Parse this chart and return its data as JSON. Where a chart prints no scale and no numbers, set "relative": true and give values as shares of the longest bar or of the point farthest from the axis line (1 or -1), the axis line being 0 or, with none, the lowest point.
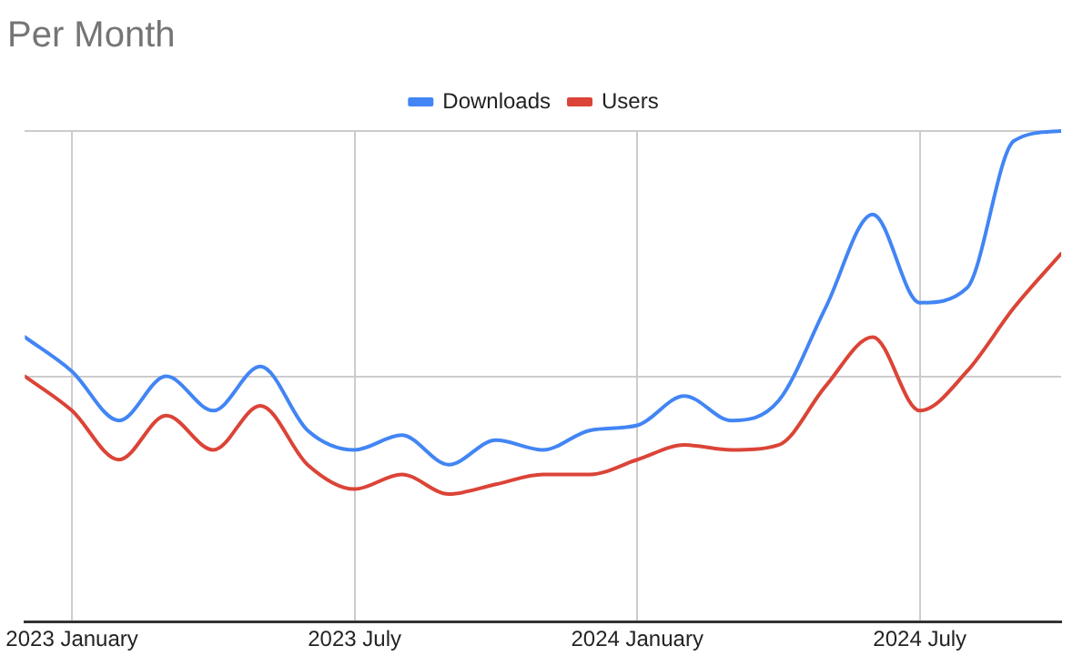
{
  "chart_data": {
    "type": "line",
    "title": "Per Month",
    "relative": true,
    "x": [
      "2022-12",
      "2023-01",
      "2023-02",
      "2023-03",
      "2023-04",
      "2023-05",
      "2023-06",
      "2023-07",
      "2023-08",
      "2023-09",
      "2023-10",
      "2023-11",
      "2023-12",
      "2024-01",
      "2024-02",
      "2024-03",
      "2024-04",
      "2024-05",
      "2024-06",
      "2024-07",
      "2024-08",
      "2024-09",
      "2024-10"
    ],
    "xlim": [
      "2022-12",
      "2024-10"
    ],
    "xticks": [
      {
        "value": "2023-01",
        "label": "2023 January"
      },
      {
        "value": "2023-07",
        "label": "2023 July"
      },
      {
        "value": "2024-01",
        "label": "2024 January"
      },
      {
        "value": "2024-07",
        "label": "2024 July"
      }
    ],
    "series": [
      {
        "name": "Downloads",
        "color": "#4285f4",
        "values": [
          0.58,
          0.51,
          0.41,
          0.5,
          0.43,
          0.52,
          0.39,
          0.35,
          0.38,
          0.32,
          0.37,
          0.35,
          0.39,
          0.4,
          0.46,
          0.41,
          0.45,
          0.64,
          0.83,
          0.65,
          0.68,
          0.98,
          1
        ]
      },
      {
        "name": "Users",
        "color": "#db4437",
        "values": [
          0.5,
          0.43,
          0.33,
          0.42,
          0.35,
          0.44,
          0.32,
          0.27,
          0.3,
          0.26,
          0.28,
          0.3,
          0.3,
          0.33,
          0.36,
          0.35,
          0.36,
          0.48,
          0.58,
          0.43,
          0.51,
          0.64,
          0.75
        ]
      }
    ],
    "grid": true,
    "legend": "top",
    "marker": "none",
    "line_style": "solid"
  }
}
